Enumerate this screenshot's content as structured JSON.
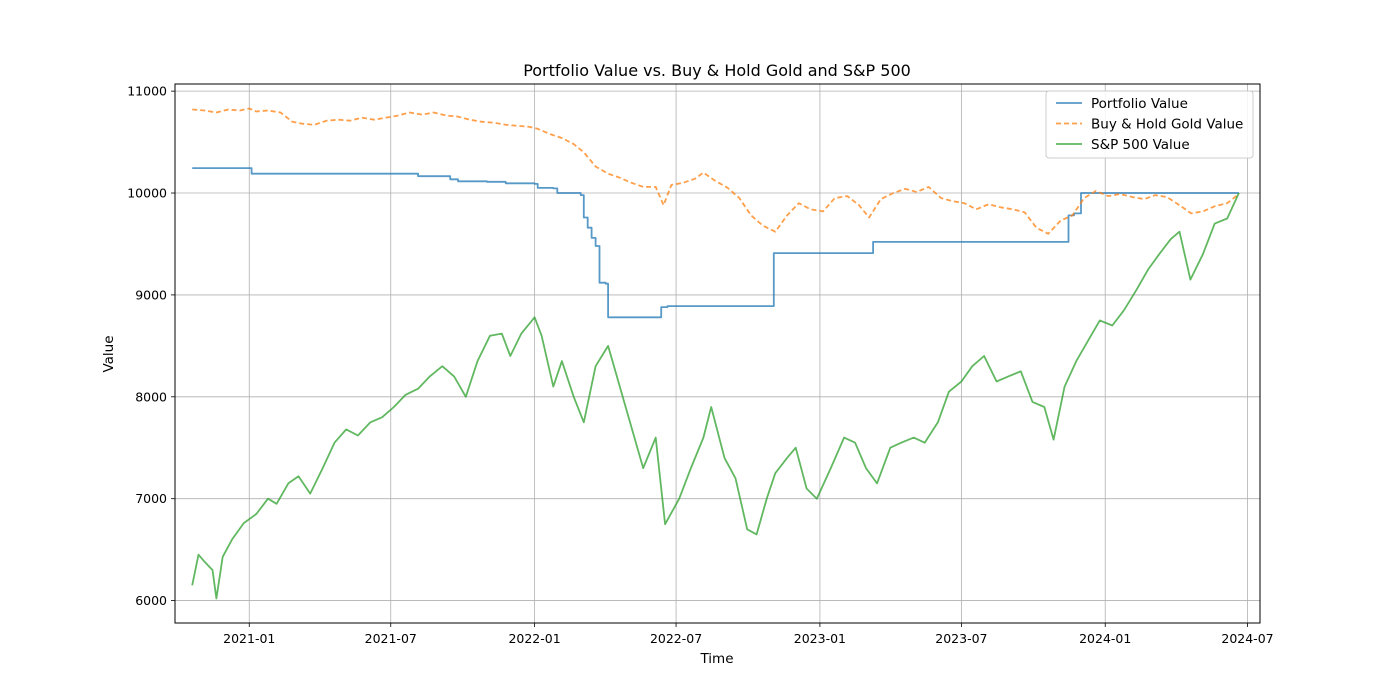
{
  "chart_data": {
    "type": "line",
    "title": "Portfolio Value vs. Buy & Hold Gold and S&P 500",
    "xlabel": "Time",
    "ylabel": "Value",
    "xlim": [
      "2020-09-28",
      "2024-07-17"
    ],
    "ylim": [
      5780,
      11070
    ],
    "x_ticks": [
      {
        "date": "2021-01-01",
        "label": "2021-01"
      },
      {
        "date": "2021-07-01",
        "label": "2021-07"
      },
      {
        "date": "2022-01-01",
        "label": "2022-01"
      },
      {
        "date": "2022-07-01",
        "label": "2022-07"
      },
      {
        "date": "2023-01-01",
        "label": "2023-01"
      },
      {
        "date": "2023-07-01",
        "label": "2023-07"
      },
      {
        "date": "2024-01-01",
        "label": "2024-01"
      },
      {
        "date": "2024-07-01",
        "label": "2024-07"
      }
    ],
    "y_ticks": [
      6000,
      7000,
      8000,
      9000,
      10000,
      11000
    ],
    "grid": true,
    "legend_position": "top-right",
    "series": [
      {
        "name": "Portfolio Value",
        "color": "#1f77b4",
        "style": "solid",
        "step": true,
        "points": [
          [
            "2020-10-20",
            10245
          ],
          [
            "2021-01-01",
            10245
          ],
          [
            "2021-01-04",
            10190
          ],
          [
            "2021-08-01",
            10190
          ],
          [
            "2021-08-05",
            10165
          ],
          [
            "2021-09-10",
            10165
          ],
          [
            "2021-09-15",
            10135
          ],
          [
            "2021-09-25",
            10115
          ],
          [
            "2021-11-01",
            10110
          ],
          [
            "2021-11-25",
            10095
          ],
          [
            "2022-01-01",
            10090
          ],
          [
            "2022-01-05",
            10050
          ],
          [
            "2022-01-25",
            10045
          ],
          [
            "2022-01-30",
            10000
          ],
          [
            "2022-02-25",
            10000
          ],
          [
            "2022-03-01",
            9980
          ],
          [
            "2022-03-05",
            9760
          ],
          [
            "2022-03-10",
            9660
          ],
          [
            "2022-03-15",
            9560
          ],
          [
            "2022-03-20",
            9480
          ],
          [
            "2022-03-25",
            9120
          ],
          [
            "2022-04-02",
            9110
          ],
          [
            "2022-04-05",
            8780
          ],
          [
            "2022-06-10",
            8780
          ],
          [
            "2022-06-12",
            8880
          ],
          [
            "2022-06-20",
            8890
          ],
          [
            "2022-11-01",
            8890
          ],
          [
            "2022-11-03",
            9410
          ],
          [
            "2023-03-05",
            9410
          ],
          [
            "2023-03-10",
            9520
          ],
          [
            "2023-11-10",
            9520
          ],
          [
            "2023-11-15",
            9780
          ],
          [
            "2023-11-22",
            9800
          ],
          [
            "2023-12-01",
            10000
          ],
          [
            "2024-06-20",
            10000
          ]
        ]
      },
      {
        "name": "Buy & Hold Gold Value",
        "color": "#ff7f0e",
        "style": "dashed",
        "points": [
          [
            "2020-10-20",
            10820
          ],
          [
            "2020-11-05",
            10810
          ],
          [
            "2020-11-20",
            10790
          ],
          [
            "2020-12-05",
            10820
          ],
          [
            "2020-12-20",
            10810
          ],
          [
            "2021-01-01",
            10830
          ],
          [
            "2021-01-10",
            10800
          ],
          [
            "2021-01-25",
            10810
          ],
          [
            "2021-02-10",
            10790
          ],
          [
            "2021-02-25",
            10700
          ],
          [
            "2021-03-10",
            10680
          ],
          [
            "2021-03-25",
            10670
          ],
          [
            "2021-04-10",
            10710
          ],
          [
            "2021-04-25",
            10720
          ],
          [
            "2021-05-10",
            10710
          ],
          [
            "2021-05-25",
            10740
          ],
          [
            "2021-06-10",
            10720
          ],
          [
            "2021-06-25",
            10740
          ],
          [
            "2021-07-10",
            10760
          ],
          [
            "2021-07-25",
            10790
          ],
          [
            "2021-08-10",
            10770
          ],
          [
            "2021-08-25",
            10790
          ],
          [
            "2021-09-10",
            10760
          ],
          [
            "2021-09-25",
            10750
          ],
          [
            "2021-10-10",
            10720
          ],
          [
            "2021-10-25",
            10700
          ],
          [
            "2021-11-10",
            10690
          ],
          [
            "2021-11-25",
            10670
          ],
          [
            "2021-12-10",
            10660
          ],
          [
            "2021-12-25",
            10650
          ],
          [
            "2022-01-05",
            10630
          ],
          [
            "2022-01-20",
            10580
          ],
          [
            "2022-02-05",
            10540
          ],
          [
            "2022-02-20",
            10480
          ],
          [
            "2022-03-05",
            10400
          ],
          [
            "2022-03-20",
            10260
          ],
          [
            "2022-04-05",
            10190
          ],
          [
            "2022-04-20",
            10150
          ],
          [
            "2022-05-05",
            10100
          ],
          [
            "2022-05-20",
            10060
          ],
          [
            "2022-06-05",
            10060
          ],
          [
            "2022-06-15",
            9880
          ],
          [
            "2022-06-25",
            10080
          ],
          [
            "2022-07-10",
            10100
          ],
          [
            "2022-07-25",
            10140
          ],
          [
            "2022-08-05",
            10200
          ],
          [
            "2022-08-20",
            10120
          ],
          [
            "2022-09-05",
            10050
          ],
          [
            "2022-09-20",
            9950
          ],
          [
            "2022-10-05",
            9780
          ],
          [
            "2022-10-20",
            9680
          ],
          [
            "2022-11-05",
            9620
          ],
          [
            "2022-11-20",
            9780
          ],
          [
            "2022-12-05",
            9900
          ],
          [
            "2022-12-20",
            9840
          ],
          [
            "2023-01-05",
            9820
          ],
          [
            "2023-01-20",
            9950
          ],
          [
            "2023-02-05",
            9970
          ],
          [
            "2023-02-20",
            9880
          ],
          [
            "2023-03-05",
            9760
          ],
          [
            "2023-03-20",
            9940
          ],
          [
            "2023-04-05",
            10000
          ],
          [
            "2023-04-20",
            10040
          ],
          [
            "2023-05-05",
            10010
          ],
          [
            "2023-05-20",
            10060
          ],
          [
            "2023-06-05",
            9950
          ],
          [
            "2023-06-20",
            9920
          ],
          [
            "2023-07-05",
            9900
          ],
          [
            "2023-07-20",
            9840
          ],
          [
            "2023-08-05",
            9890
          ],
          [
            "2023-08-20",
            9860
          ],
          [
            "2023-09-05",
            9840
          ],
          [
            "2023-09-20",
            9810
          ],
          [
            "2023-10-05",
            9660
          ],
          [
            "2023-10-20",
            9600
          ],
          [
            "2023-11-05",
            9730
          ],
          [
            "2023-11-20",
            9780
          ],
          [
            "2023-12-05",
            9950
          ],
          [
            "2023-12-20",
            10020
          ],
          [
            "2024-01-05",
            9970
          ],
          [
            "2024-01-20",
            9990
          ],
          [
            "2024-02-05",
            9960
          ],
          [
            "2024-02-20",
            9940
          ],
          [
            "2024-03-05",
            9980
          ],
          [
            "2024-03-20",
            9960
          ],
          [
            "2024-04-05",
            9880
          ],
          [
            "2024-04-20",
            9800
          ],
          [
            "2024-05-05",
            9820
          ],
          [
            "2024-05-20",
            9870
          ],
          [
            "2024-06-05",
            9900
          ],
          [
            "2024-06-20",
            9990
          ]
        ]
      },
      {
        "name": "S&P 500 Value",
        "color": "#2ca02c",
        "style": "solid",
        "points": [
          [
            "2020-10-20",
            6150
          ],
          [
            "2020-10-28",
            6450
          ],
          [
            "2020-11-05",
            6380
          ],
          [
            "2020-11-15",
            6300
          ],
          [
            "2020-11-20",
            6020
          ],
          [
            "2020-11-28",
            6430
          ],
          [
            "2020-12-10",
            6600
          ],
          [
            "2020-12-25",
            6760
          ],
          [
            "2021-01-10",
            6850
          ],
          [
            "2021-01-25",
            7000
          ],
          [
            "2021-02-05",
            6950
          ],
          [
            "2021-02-20",
            7150
          ],
          [
            "2021-03-05",
            7220
          ],
          [
            "2021-03-20",
            7050
          ],
          [
            "2021-04-05",
            7300
          ],
          [
            "2021-04-20",
            7550
          ],
          [
            "2021-05-05",
            7680
          ],
          [
            "2021-05-20",
            7620
          ],
          [
            "2021-06-05",
            7750
          ],
          [
            "2021-06-20",
            7800
          ],
          [
            "2021-07-05",
            7900
          ],
          [
            "2021-07-20",
            8020
          ],
          [
            "2021-08-05",
            8080
          ],
          [
            "2021-08-20",
            8200
          ],
          [
            "2021-09-05",
            8300
          ],
          [
            "2021-09-20",
            8200
          ],
          [
            "2021-10-05",
            8000
          ],
          [
            "2021-10-20",
            8350
          ],
          [
            "2021-11-05",
            8600
          ],
          [
            "2021-11-20",
            8620
          ],
          [
            "2021-12-01",
            8400
          ],
          [
            "2021-12-15",
            8620
          ],
          [
            "2022-01-01",
            8780
          ],
          [
            "2022-01-10",
            8600
          ],
          [
            "2022-01-25",
            8100
          ],
          [
            "2022-02-05",
            8350
          ],
          [
            "2022-02-20",
            8000
          ],
          [
            "2022-03-05",
            7750
          ],
          [
            "2022-03-20",
            8300
          ],
          [
            "2022-04-05",
            8500
          ],
          [
            "2022-04-20",
            8100
          ],
          [
            "2022-05-05",
            7700
          ],
          [
            "2022-05-20",
            7300
          ],
          [
            "2022-06-05",
            7600
          ],
          [
            "2022-06-17",
            6750
          ],
          [
            "2022-07-05",
            7000
          ],
          [
            "2022-07-20",
            7300
          ],
          [
            "2022-08-05",
            7600
          ],
          [
            "2022-08-15",
            7900
          ],
          [
            "2022-09-01",
            7400
          ],
          [
            "2022-09-15",
            7200
          ],
          [
            "2022-09-30",
            6700
          ],
          [
            "2022-10-12",
            6650
          ],
          [
            "2022-10-25",
            7000
          ],
          [
            "2022-11-05",
            7250
          ],
          [
            "2022-11-20",
            7400
          ],
          [
            "2022-12-01",
            7500
          ],
          [
            "2022-12-15",
            7100
          ],
          [
            "2022-12-28",
            7000
          ],
          [
            "2023-01-15",
            7300
          ],
          [
            "2023-02-01",
            7600
          ],
          [
            "2023-02-15",
            7550
          ],
          [
            "2023-03-01",
            7300
          ],
          [
            "2023-03-15",
            7150
          ],
          [
            "2023-04-01",
            7500
          ],
          [
            "2023-04-15",
            7550
          ],
          [
            "2023-05-01",
            7600
          ],
          [
            "2023-05-15",
            7550
          ],
          [
            "2023-06-01",
            7750
          ],
          [
            "2023-06-15",
            8050
          ],
          [
            "2023-07-01",
            8150
          ],
          [
            "2023-07-15",
            8300
          ],
          [
            "2023-07-30",
            8400
          ],
          [
            "2023-08-15",
            8150
          ],
          [
            "2023-08-30",
            8200
          ],
          [
            "2023-09-15",
            8250
          ],
          [
            "2023-09-30",
            7950
          ],
          [
            "2023-10-15",
            7900
          ],
          [
            "2023-10-27",
            7580
          ],
          [
            "2023-11-10",
            8100
          ],
          [
            "2023-11-25",
            8350
          ],
          [
            "2023-12-10",
            8550
          ],
          [
            "2023-12-25",
            8750
          ],
          [
            "2024-01-10",
            8700
          ],
          [
            "2024-01-25",
            8850
          ],
          [
            "2024-02-10",
            9050
          ],
          [
            "2024-02-25",
            9250
          ],
          [
            "2024-03-10",
            9400
          ],
          [
            "2024-03-25",
            9550
          ],
          [
            "2024-04-05",
            9620
          ],
          [
            "2024-04-19",
            9150
          ],
          [
            "2024-05-05",
            9400
          ],
          [
            "2024-05-20",
            9700
          ],
          [
            "2024-06-05",
            9750
          ],
          [
            "2024-06-20",
            10000
          ]
        ]
      }
    ]
  }
}
